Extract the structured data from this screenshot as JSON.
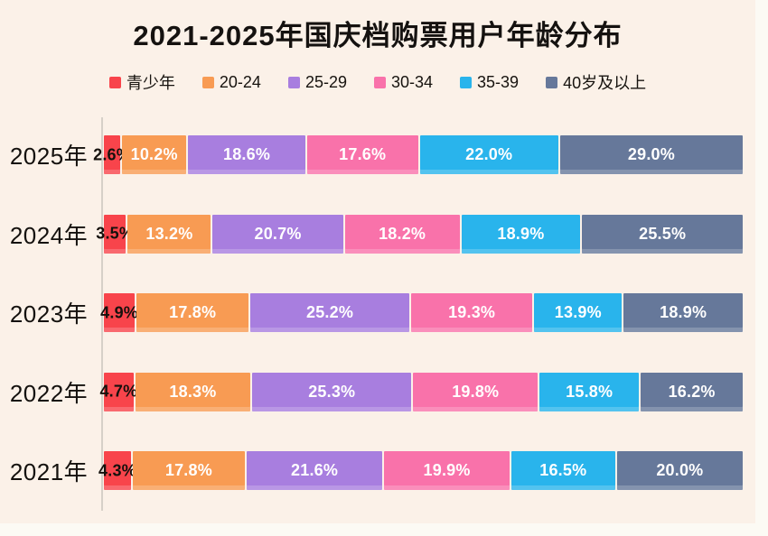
{
  "title": "2021-2025年国庆档购票用户年龄分布",
  "colors": {
    "background": "#fbf1e8",
    "page": "#fcfaf4",
    "axis": "#d6d0c8",
    "bar_label": "#ffffff",
    "bar_label_dark": "#15110d"
  },
  "chart_data": {
    "type": "bar",
    "orientation": "horizontal-stacked",
    "title": "2021-2025年国庆档购票用户年龄分布",
    "value_format": "percent",
    "xlim": [
      0,
      100
    ],
    "legend_position": "top",
    "grid": false,
    "categories": [
      "2025年",
      "2024年",
      "2023年",
      "2022年",
      "2021年"
    ],
    "series": [
      {
        "name": "青少年",
        "color": "#f8444b",
        "label_color": "#15110d",
        "values": [
          2.6,
          3.5,
          4.9,
          4.7,
          4.3
        ]
      },
      {
        "name": "20-24",
        "color": "#f89b53",
        "label_color": "#ffffff",
        "values": [
          10.2,
          13.2,
          17.8,
          18.3,
          17.8
        ]
      },
      {
        "name": "25-29",
        "color": "#a87edf",
        "label_color": "#ffffff",
        "values": [
          18.6,
          20.7,
          25.2,
          25.3,
          21.6
        ]
      },
      {
        "name": "30-34",
        "color": "#f972aa",
        "label_color": "#ffffff",
        "values": [
          17.6,
          18.2,
          19.3,
          19.8,
          19.9
        ]
      },
      {
        "name": "35-39",
        "color": "#29b4ec",
        "label_color": "#ffffff",
        "values": [
          22.0,
          18.9,
          13.9,
          15.8,
          16.5
        ]
      },
      {
        "name": "40岁及以上",
        "color": "#66789a",
        "label_color": "#ffffff",
        "values": [
          29.0,
          25.5,
          18.9,
          16.2,
          20.0
        ]
      }
    ]
  }
}
